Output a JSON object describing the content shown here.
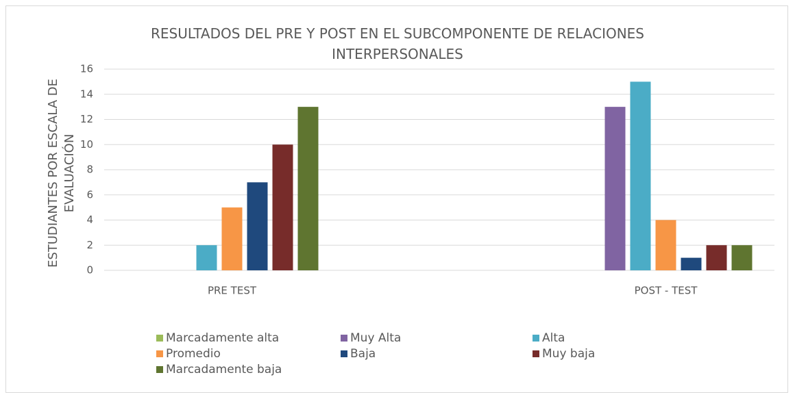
{
  "chart_data": {
    "type": "bar",
    "title": "RESULTADOS DEL PRE Y POST EN EL SUBCOMPONENTE DE RELACIONES INTERPERSONALES",
    "y_label": "ESTUDIANTES POR ESCALA DE EVALUACIÓN",
    "categories": [
      "PRE TEST",
      "POST - TEST"
    ],
    "series": [
      {
        "name": "Marcadamente alta",
        "color": "#9bbb59",
        "values": [
          0,
          0
        ]
      },
      {
        "name": "Muy Alta",
        "color": "#8064a2",
        "values": [
          0,
          13
        ]
      },
      {
        "name": "Alta",
        "color": "#4bacc6",
        "values": [
          2,
          15
        ]
      },
      {
        "name": "Promedio",
        "color": "#f79646",
        "values": [
          5,
          4
        ]
      },
      {
        "name": "Baja",
        "color": "#1f497d",
        "values": [
          7,
          1
        ]
      },
      {
        "name": "Muy baja",
        "color": "#772c2a",
        "values": [
          10,
          2
        ]
      },
      {
        "name": "Marcadamente baja",
        "color": "#5f7530",
        "values": [
          13,
          2
        ]
      }
    ],
    "ylim": [
      0,
      16
    ],
    "yticks": [
      0,
      2,
      4,
      6,
      8,
      10,
      12,
      14,
      16
    ],
    "grid": true,
    "legend": "bottom"
  }
}
